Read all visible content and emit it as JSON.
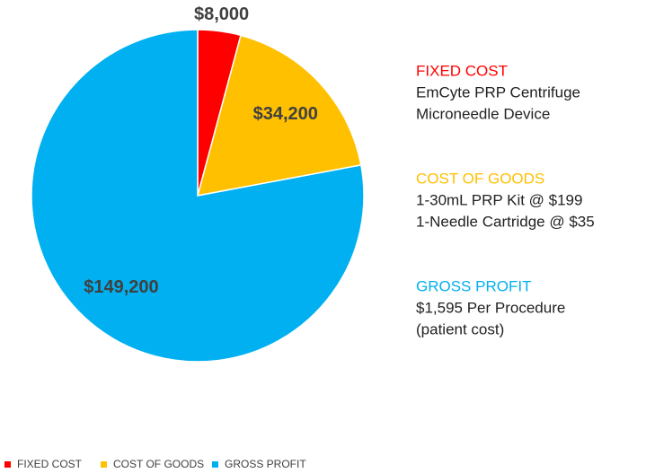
{
  "chart_data": {
    "type": "pie",
    "categories": [
      "FIXED COST",
      "COST OF GOODS",
      "GROSS PROFIT"
    ],
    "values": [
      8000,
      34200,
      149200
    ],
    "value_labels": [
      "$8,000",
      "$34,200",
      "$149,200"
    ],
    "colors": [
      "#ff0000",
      "#ffc000",
      "#00b0f0"
    ],
    "legend": "bottom",
    "annotations": [
      [
        "EmCyte PRP Centrifuge",
        "Microneedle Device"
      ],
      [
        "1-30mL PRP Kit @ $199",
        "1-Needle Cartridge @ $35"
      ],
      [
        "$1,595 Per Procedure",
        "(patient cost)"
      ]
    ]
  }
}
